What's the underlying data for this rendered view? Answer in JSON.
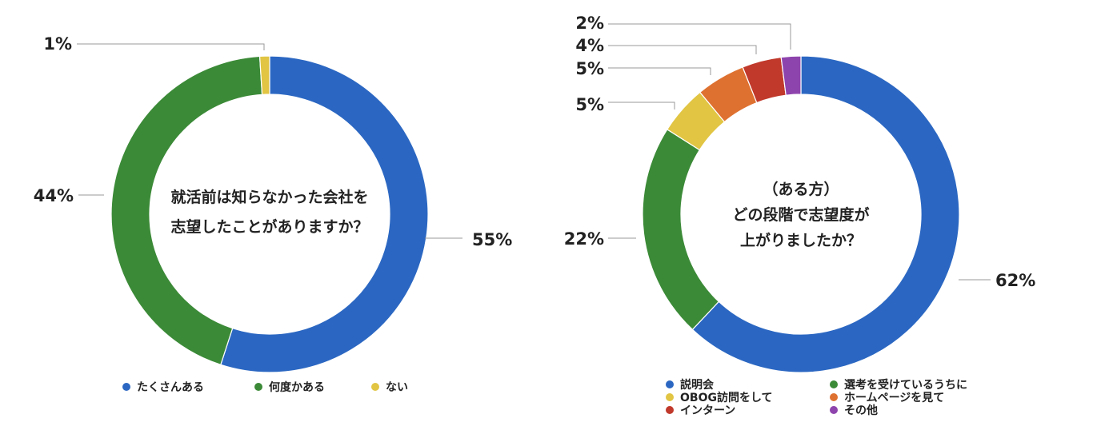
{
  "chart_data": [
    {
      "type": "pie",
      "title": "就活前は知らなかった会社を\n志望したことがありますか？",
      "categories": [
        "たくさんある",
        "何度かある",
        "ない"
      ],
      "values": [
        55,
        44,
        1
      ],
      "labels": [
        "55%",
        "44%",
        "1%"
      ],
      "colors": [
        "#2b67c2",
        "#3b8a37",
        "#e1c543"
      ],
      "legend_position": "bottom"
    },
    {
      "type": "pie",
      "title": "（ある方）\nどの段階で志望度が\n上がりましたか？",
      "categories": [
        "説明会",
        "選考を受けているうちに",
        "OBOG訪問をして",
        "ホームページを見て",
        "インターン",
        "その他"
      ],
      "values": [
        62,
        22,
        5,
        5,
        4,
        2
      ],
      "labels": [
        "62%",
        "22%",
        "5%",
        "5%",
        "4%",
        "2%"
      ],
      "colors": [
        "#2b67c2",
        "#3b8a37",
        "#e1c543",
        "#de7130",
        "#c0392b",
        "#8e44ad"
      ],
      "legend_position": "bottom"
    }
  ]
}
